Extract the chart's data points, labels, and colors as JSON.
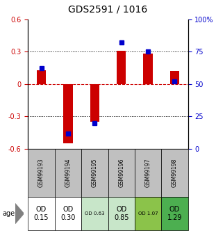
{
  "title": "GDS2591 / 1016",
  "samples": [
    "GSM99193",
    "GSM99194",
    "GSM99195",
    "GSM99196",
    "GSM99197",
    "GSM99198"
  ],
  "log2_ratio": [
    0.13,
    -0.55,
    -0.35,
    0.31,
    0.28,
    0.12
  ],
  "percentile_rank": [
    62,
    12,
    20,
    82,
    75,
    52
  ],
  "od_labels": [
    "OD\n0.15",
    "OD\n0.30",
    "OD 0.63",
    "OD\n0.85",
    "OD 1.07",
    "OD\n1.29"
  ],
  "od_values": [
    0.15,
    0.3,
    0.63,
    0.85,
    1.07,
    1.29
  ],
  "od_bg_colors": [
    "#ffffff",
    "#ffffff",
    "#c8e6c9",
    "#c8e6c9",
    "#8bc34a",
    "#4caf50"
  ],
  "sample_bg_color": "#c0c0c0",
  "ylim": [
    -0.6,
    0.6
  ],
  "yticks_left": [
    -0.6,
    -0.3,
    0.0,
    0.3,
    0.6
  ],
  "yticks_right": [
    0,
    25,
    50,
    75,
    100
  ],
  "right_labels": [
    "0",
    "25",
    "50",
    "75",
    "100%"
  ],
  "bar_color_red": "#cc0000",
  "bar_color_blue": "#0000cc",
  "zero_line_color": "#cc0000",
  "title_fontsize": 10,
  "tick_fontsize": 7,
  "legend_fontsize": 7
}
